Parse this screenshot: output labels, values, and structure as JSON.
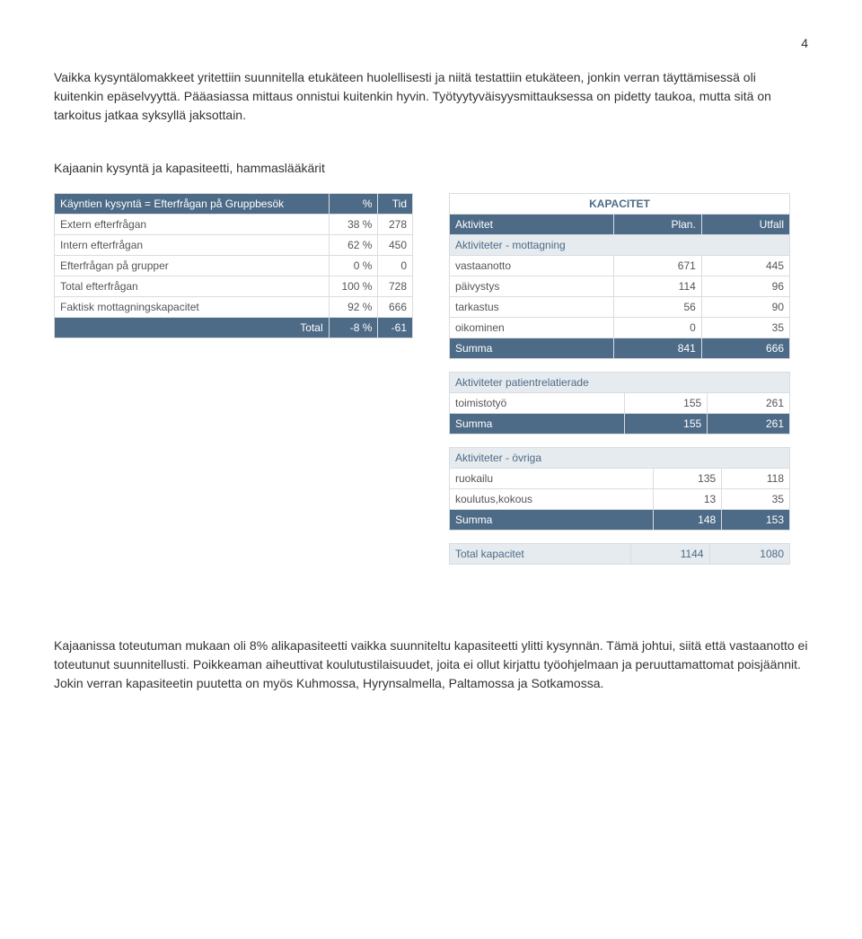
{
  "page_number": "4",
  "intro_paragraph": "Vaikka kysyntälomakkeet yritettiin suunnitella etukäteen huolellisesti ja niitä testattiin etukäteen, jonkin verran täyttämisessä oli kuitenkin epäselvyyttä. Pääasiassa mittaus onnistui kuitenkin hyvin. Työtyytyväisyysmittauksessa on pidetty taukoa, mutta sitä on tarkoitus jatkaa syksyllä jaksottain.",
  "section_heading": "Kajaanin kysyntä ja kapasiteetti, hammaslääkärit",
  "left_table": {
    "header_label": "Käyntien kysyntä = Efterfrågan på Gruppbesök",
    "col_pct": "%",
    "col_tid": "Tid",
    "rows": [
      {
        "label": "Extern efterfrågan",
        "pct": "38 %",
        "tid": "278"
      },
      {
        "label": "Intern efterfrågan",
        "pct": "62 %",
        "tid": "450"
      },
      {
        "label": "Efterfrågan på grupper",
        "pct": "0 %",
        "tid": "0"
      },
      {
        "label": "Total efterfrågan",
        "pct": "100 %",
        "tid": "728"
      },
      {
        "label": "Faktisk mottagningskapacitet",
        "pct": "92 %",
        "tid": "666"
      }
    ],
    "total": {
      "label": "Total",
      "pct": "-8 %",
      "tid": "-61"
    }
  },
  "right_tables": {
    "kap_title": "KAPACITET",
    "header": {
      "col1": "Aktivitet",
      "col2": "Plan.",
      "col3": "Utfall"
    },
    "group1": {
      "heading": "Aktiviteter - mottagning",
      "rows": [
        {
          "label": "vastaanotto",
          "plan": "671",
          "utfall": "445"
        },
        {
          "label": "päivystys",
          "plan": "114",
          "utfall": "96"
        },
        {
          "label": "tarkastus",
          "plan": "56",
          "utfall": "90"
        },
        {
          "label": "oikominen",
          "plan": "0",
          "utfall": "35"
        }
      ],
      "sum": {
        "label": "Summa",
        "plan": "841",
        "utfall": "666"
      }
    },
    "group2": {
      "heading": "Aktiviteter patientrelatierade",
      "rows": [
        {
          "label": "toimistotyö",
          "plan": "155",
          "utfall": "261"
        }
      ],
      "sum": {
        "label": "Summa",
        "plan": "155",
        "utfall": "261"
      }
    },
    "group3": {
      "heading": "Aktiviteter - övriga",
      "rows": [
        {
          "label": "ruokailu",
          "plan": "135",
          "utfall": "118"
        },
        {
          "label": "koulutus,kokous",
          "plan": "13",
          "utfall": "35"
        }
      ],
      "sum": {
        "label": "Summa",
        "plan": "148",
        "utfall": "153"
      }
    },
    "total": {
      "label": "Total kapacitet",
      "plan": "1144",
      "utfall": "1080"
    }
  },
  "bottom_paragraph": "Kajaanissa toteutuman mukaan oli 8% alikapasiteetti vaikka suunniteltu kapasiteetti ylitti kysynnän. Tämä johtui, siitä että vastaanotto ei toteutunut suunnitellusti. Poikkeaman aiheuttivat koulutustilaisuudet, joita ei ollut kirjattu työohjelmaan ja peruuttamattomat poisjäännit. Jokin verran kapasiteetin puutetta on myös Kuhmossa, Hyrynsalmella, Paltamossa ja Sotkamossa.",
  "colors": {
    "header_bg": "#4d6b87",
    "header_fg": "#ffffff",
    "sub_bg": "#e6ebef",
    "sub_fg": "#4d6b87",
    "border": "#d9dde0"
  }
}
